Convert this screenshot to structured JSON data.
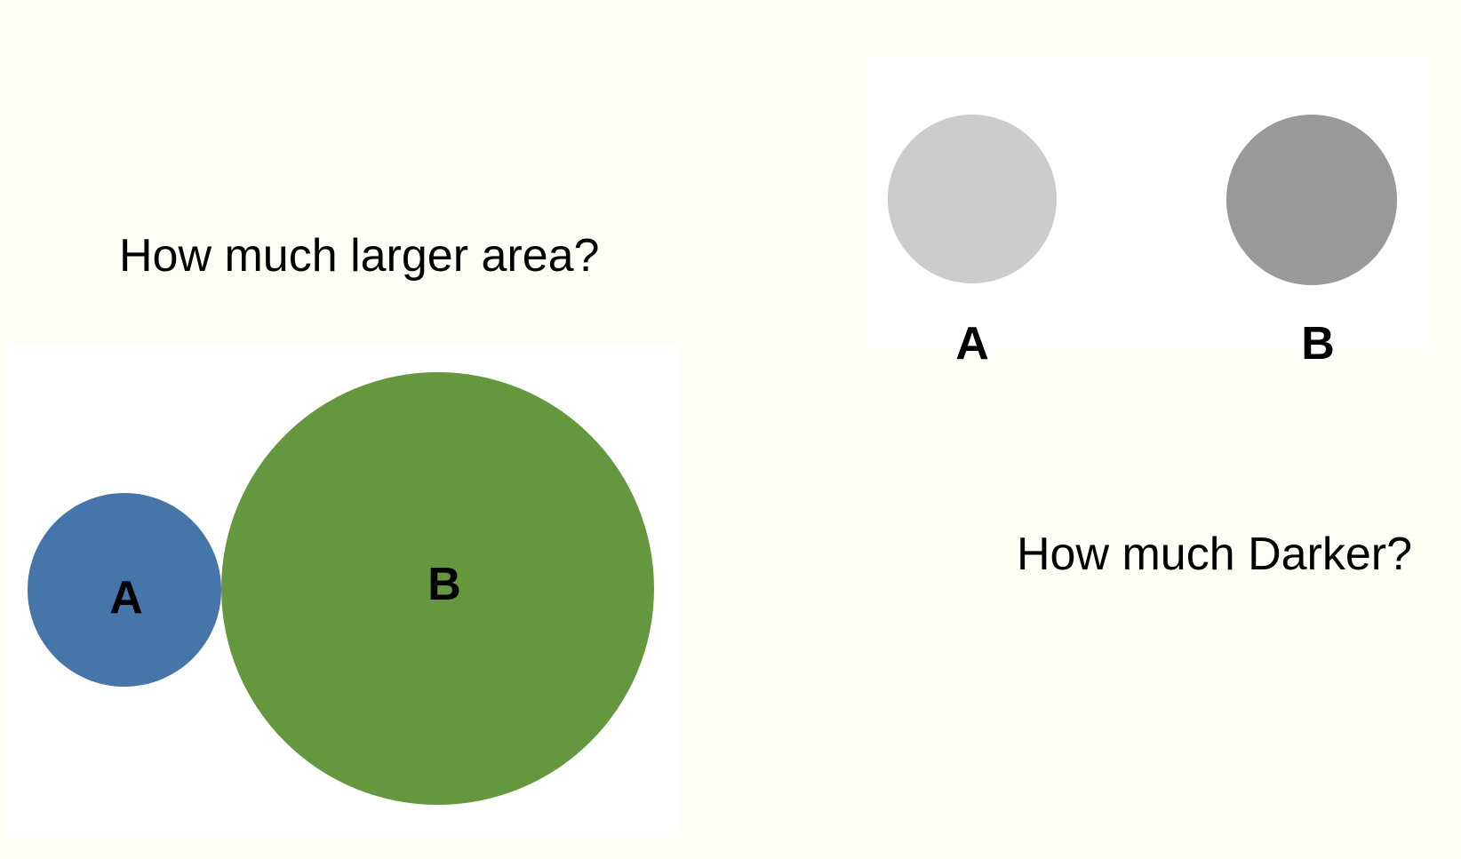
{
  "area_comparison": {
    "question": "How much larger area?",
    "circle_a": {
      "label": "A",
      "color": "#4675aa"
    },
    "circle_b": {
      "label": "B",
      "color": "#65973f"
    }
  },
  "shade_comparison": {
    "question": "How much Darker?",
    "circle_a": {
      "label": "A",
      "color": "#cccccc"
    },
    "circle_b": {
      "label": "B",
      "color": "#999999"
    }
  },
  "colors": {
    "background": "#fefef6",
    "panel": "#ffffff",
    "text": "#000000"
  }
}
